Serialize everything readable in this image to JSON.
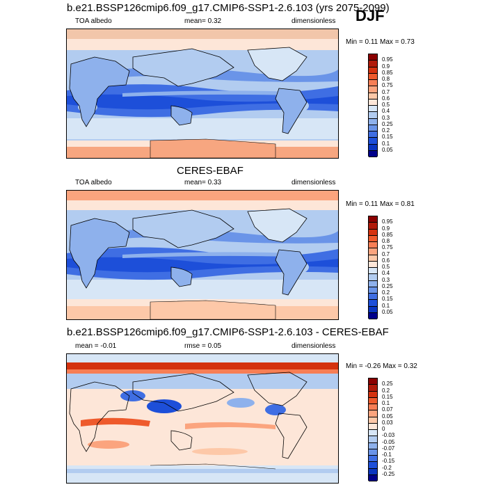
{
  "season": "DJF",
  "panels": [
    {
      "title": "b.e21.BSSP126cmip6.f09_g17.CMIP6-SSP1-2.6.103 (yrs 2075-2099)",
      "left": "TOA albedo",
      "mid": "mean=   0.32",
      "right": "dimensionless",
      "minmax": "Min =   0.11 Max =   0.73",
      "colorbar_labels": [
        "0.95",
        "0.9",
        "0.85",
        "0.8",
        "0.75",
        "0.7",
        "0.6",
        "0.5",
        "0.4",
        "0.3",
        "0.25",
        "0.2",
        "0.15",
        "0.1",
        "0.05"
      ],
      "colorbar_colors": [
        "#8b0000",
        "#b01a0a",
        "#d4320f",
        "#ee5a2c",
        "#f77e55",
        "#fba47e",
        "#fdc8a8",
        "#fde6d8",
        "#d7e6f6",
        "#b2ccf0",
        "#8eb1ec",
        "#6a94e8",
        "#3f6ee3",
        "#1d4fd9",
        "#0a35c0",
        "#00008b"
      ]
    },
    {
      "title": "CERES-EBAF",
      "left": "TOA albedo",
      "mid": "mean=   0.33",
      "right": "dimensionless",
      "minmax": "Min =   0.11 Max =   0.81",
      "colorbar_labels": [
        "0.95",
        "0.9",
        "0.85",
        "0.8",
        "0.75",
        "0.7",
        "0.6",
        "0.5",
        "0.4",
        "0.3",
        "0.25",
        "0.2",
        "0.15",
        "0.1",
        "0.05"
      ],
      "colorbar_colors": [
        "#8b0000",
        "#b01a0a",
        "#d4320f",
        "#ee5a2c",
        "#f77e55",
        "#fba47e",
        "#fdc8a8",
        "#fde6d8",
        "#d7e6f6",
        "#b2ccf0",
        "#8eb1ec",
        "#6a94e8",
        "#3f6ee3",
        "#1d4fd9",
        "#0a35c0",
        "#00008b"
      ]
    },
    {
      "title": "b.e21.BSSP126cmip6.f09_g17.CMIP6-SSP1-2.6.103 - CERES-EBAF",
      "left": "mean =  -0.01",
      "mid": "rmse =  0.05",
      "right": "dimensionless",
      "minmax": "Min =  -0.26 Max =   0.32",
      "colorbar_labels": [
        "0.25",
        "0.2",
        "0.15",
        "0.1",
        "0.07",
        "0.05",
        "0.03",
        "0",
        "-0.03",
        "-0.05",
        "-0.07",
        "-0.1",
        "-0.15",
        "-0.2",
        "-0.25"
      ],
      "colorbar_colors": [
        "#8b0000",
        "#b01a0a",
        "#d4320f",
        "#ee5a2c",
        "#f77e55",
        "#fba47e",
        "#fdc8a8",
        "#fde6d8",
        "#d7e6f6",
        "#b2ccf0",
        "#8eb1ec",
        "#6a94e8",
        "#3f6ee3",
        "#1d4fd9",
        "#0a35c0",
        "#00008b"
      ]
    }
  ]
}
